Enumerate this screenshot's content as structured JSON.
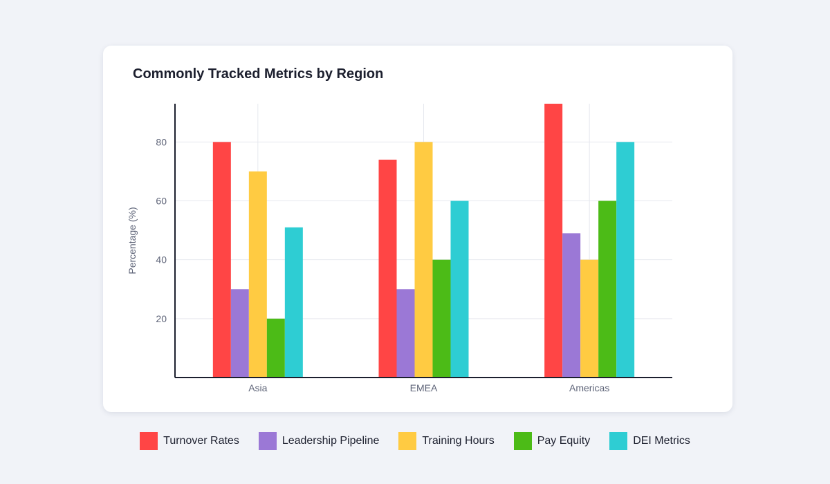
{
  "chart_data": {
    "type": "bar",
    "title": "Commonly Tracked Metrics by Region",
    "xlabel": "",
    "ylabel": "Percentage (%)",
    "ylim": [
      0,
      93
    ],
    "yticks": [
      20,
      40,
      60,
      80
    ],
    "grid": true,
    "legend_position": "bottom",
    "categories": [
      "Asia",
      "EMEA",
      "Americas"
    ],
    "series": [
      {
        "name": "Turnover Rates",
        "color": "#ff4545",
        "values": [
          80,
          74,
          93
        ]
      },
      {
        "name": "Leadership Pipeline",
        "color": "#9b78d6",
        "values": [
          30,
          30,
          49
        ]
      },
      {
        "name": "Training Hours",
        "color": "#ffcb42",
        "values": [
          70,
          80,
          40
        ]
      },
      {
        "name": "Pay Equity",
        "color": "#4cbb17",
        "values": [
          20,
          40,
          60
        ]
      },
      {
        "name": "DEI Metrics",
        "color": "#2ecdd3",
        "values": [
          51,
          60,
          80
        ]
      }
    ]
  }
}
